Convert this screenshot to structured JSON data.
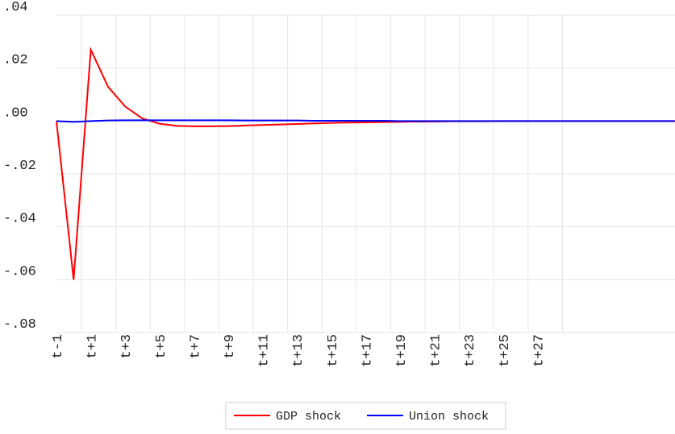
{
  "chart_data": {
    "type": "line",
    "categories": [
      "t-1",
      null,
      "t+1",
      null,
      "t+3",
      null,
      "t+5",
      null,
      "t+7",
      null,
      "t+9",
      null,
      "t+11",
      null,
      "t+13",
      null,
      "t+15",
      null,
      "t+17",
      null,
      "t+19",
      null,
      "t+21",
      null,
      "t+23",
      null,
      "t+25",
      null,
      "t+27",
      null,
      null,
      null,
      null,
      null,
      null,
      null,
      null
    ],
    "series": [
      {
        "name": "GDP shock",
        "color": "#ff0000",
        "values": [
          0,
          -0.06,
          0.027,
          0.013,
          0.0055,
          0.001,
          -0.001,
          -0.0018,
          -0.002,
          -0.002,
          -0.0019,
          -0.0017,
          -0.0015,
          -0.0013,
          -0.0011,
          -0.0009,
          -0.0007,
          -0.0006,
          -0.0005,
          -0.0004,
          -0.0003,
          -0.0002,
          -0.0002,
          -0.0001,
          -0.0001,
          -0.0001,
          0,
          0,
          0,
          0,
          0,
          0,
          0,
          0,
          0,
          0,
          0
        ]
      },
      {
        "name": "Union shock",
        "color": "#0000ff",
        "values": [
          0,
          -0.0003,
          0,
          0.0002,
          0.0003,
          0.0003,
          0.0003,
          0.0003,
          0.0003,
          0.0003,
          0.0003,
          0.0002,
          0.0002,
          0.0002,
          0.0002,
          0.0001,
          0.0001,
          0.0001,
          0.0001,
          0.0001,
          0,
          0,
          0,
          0,
          0,
          0,
          0,
          0,
          0,
          0,
          0,
          0,
          0,
          0,
          0,
          0,
          0
        ]
      }
    ],
    "ylim": [
      -0.08,
      0.04
    ],
    "yticks": [
      {
        "value": -0.08,
        "label": "-.08"
      },
      {
        "value": -0.06,
        "label": "-.06"
      },
      {
        "value": -0.04,
        "label": "-.04"
      },
      {
        "value": -0.02,
        "label": "-.02"
      },
      {
        "value": 0,
        "label": ".00"
      },
      {
        "value": 0.02,
        "label": ".02"
      },
      {
        "value": 0.04,
        "label": ".04"
      }
    ],
    "grid": true
  }
}
